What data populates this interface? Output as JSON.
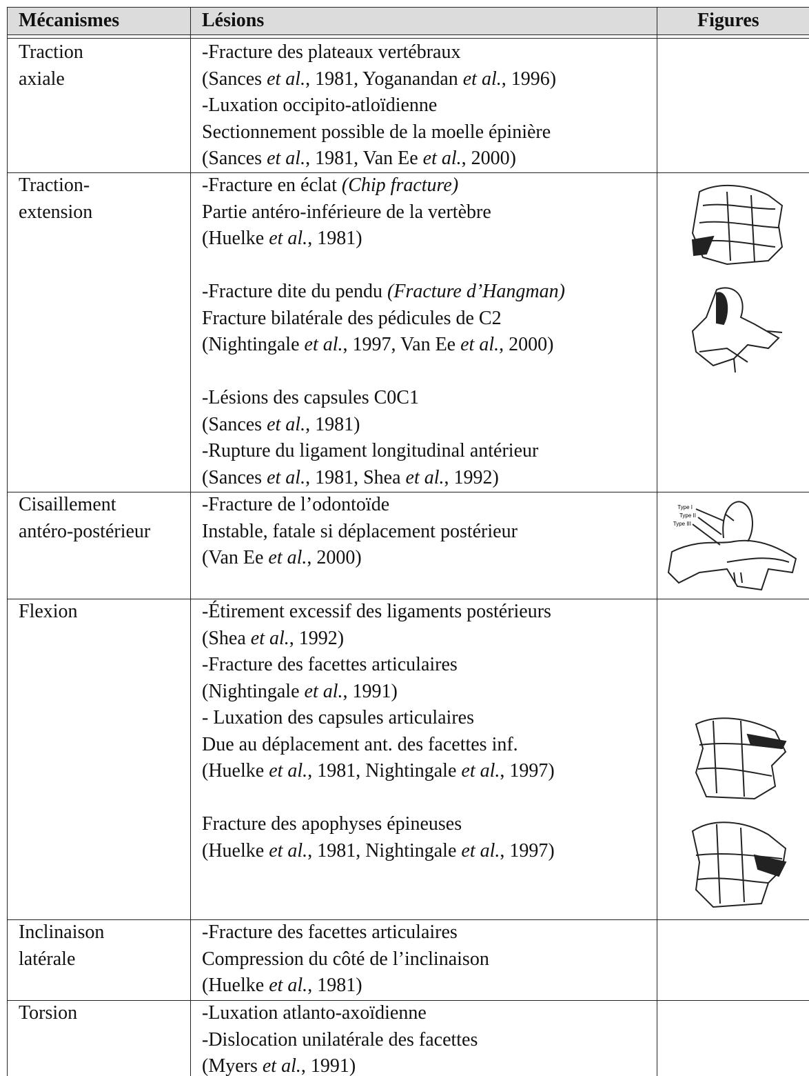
{
  "header": {
    "columns": [
      "Mécanismes",
      "Lésions",
      "Figures"
    ]
  },
  "table": {
    "rows": [
      {
        "mechanism": [
          "Traction",
          "axiale"
        ],
        "lesions": [
          [
            [
              "-Fracture des plateaux vertébraux"
            ],
            [
              "(Sances ",
              "et al.",
              ", 1981, Yoganandan ",
              "et al.",
              ", 1996)"
            ],
            [
              "-Luxation occipito-atloïdienne"
            ],
            [
              "Sectionnement possible de la moelle épinière"
            ],
            [
              "(Sances ",
              "et al.",
              ", 1981, Van Ee ",
              "et al.",
              ", 2000)"
            ]
          ]
        ]
      },
      {
        "mechanism": [
          "Traction-",
          "extension"
        ],
        "lesions": [
          [
            [
              "-Fracture en éclat ",
              "(Chip fracture)"
            ],
            [
              "Partie antéro-inférieure de la vertèbre"
            ],
            [
              "(Huelke ",
              "et al.",
              ", 1981)"
            ]
          ],
          [
            [
              "-Fracture dite du pendu ",
              "(Fracture d’Hangman)"
            ],
            [
              "Fracture bilatérale des pédicules de C2"
            ],
            [
              "(Nightingale ",
              "et al.",
              ", 1997, Van Ee ",
              "et al.",
              ", 2000)"
            ]
          ],
          [
            [
              "-Lésions des capsules C0C1"
            ],
            [
              "(Sances ",
              "et al.",
              ", 1981)"
            ],
            [
              "-Rupture du ligament longitudinal antérieur"
            ],
            [
              "(Sances ",
              "et al.",
              ", 1981, Shea ",
              "et al.",
              ", 1992)"
            ]
          ]
        ]
      },
      {
        "mechanism": [
          "Cisaillement",
          "antéro-postérieur"
        ],
        "lesions": [
          [
            [
              "-Fracture de l’odontoïde"
            ],
            [
              "Instable, fatale si déplacement postérieur"
            ],
            [
              "(Van Ee ",
              "et al.",
              ", 2000)"
            ]
          ]
        ],
        "figure_labels": [
          "Type I",
          "Type II",
          "Type III"
        ]
      },
      {
        "mechanism": [
          "Flexion"
        ],
        "lesions": [
          [
            [
              "-Étirement excessif des ligaments postérieurs"
            ],
            [
              "(Shea ",
              "et al.",
              ", 1992)"
            ],
            [
              "-Fracture des facettes articulaires"
            ],
            [
              "(Nightingale ",
              "et al.",
              ", 1991)"
            ],
            [
              "- Luxation des capsules articulaires"
            ],
            [
              "Due au déplacement ant. des facettes inf."
            ],
            [
              "(Huelke ",
              "et al.",
              ", 1981, Nightingale ",
              "et al.",
              ", 1997)"
            ]
          ],
          [
            [
              "Fracture des apophyses épineuses"
            ],
            [
              "(Huelke ",
              "et al.",
              ", 1981, Nightingale ",
              "et al.",
              ", 1997)"
            ]
          ]
        ]
      },
      {
        "mechanism": [
          "Inclinaison",
          "latérale"
        ],
        "lesions": [
          [
            [
              "-Fracture des facettes articulaires"
            ],
            [
              "Compression du côté de l’inclinaison"
            ],
            [
              "(Huelke ",
              "et al.",
              ", 1981)"
            ]
          ]
        ]
      },
      {
        "mechanism": [
          "Torsion"
        ],
        "lesions": [
          [
            [
              "-Luxation atlanto-axoïdienne"
            ],
            [
              "-Dislocation unilatérale des facettes"
            ],
            [
              "(Myers ",
              "et al.",
              ", 1991)"
            ]
          ]
        ]
      }
    ]
  }
}
